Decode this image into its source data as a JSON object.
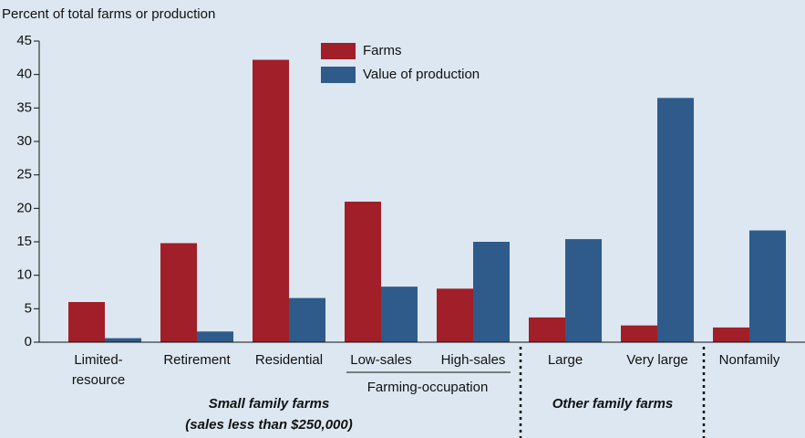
{
  "chart_data": {
    "type": "bar",
    "y_axis_label": "Percent of total farms or production",
    "categories": [
      "Limited-\nresource",
      "Retirement",
      "Residential",
      "Low-sales",
      "High-sales",
      "Large",
      "Very large",
      "Nonfamily"
    ],
    "series": [
      {
        "name": "Farms",
        "color": "#a01f28",
        "values": [
          6.0,
          14.8,
          42.2,
          21.0,
          8.0,
          3.7,
          2.5,
          2.2
        ]
      },
      {
        "name": "Value of production",
        "color": "#2f5b8b",
        "values": [
          0.6,
          1.6,
          6.6,
          8.3,
          15.0,
          15.4,
          36.5,
          16.7
        ]
      }
    ],
    "ylim": [
      0,
      45
    ],
    "yticks": [
      0,
      5,
      10,
      15,
      20,
      25,
      30,
      35,
      40,
      45
    ],
    "subgroup_label": "Farming-occupation",
    "group_labels": [
      "Small family farms",
      "(sales less than $250,000)",
      "Other family farms"
    ]
  }
}
